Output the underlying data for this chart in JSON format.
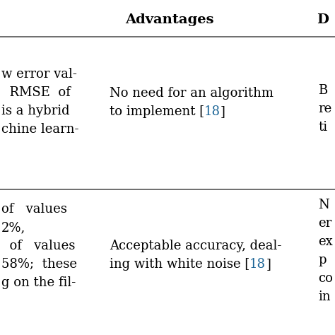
{
  "background_color": "#ffffff",
  "header_text": "Advantages",
  "header_right_text": "D",
  "header_fontsize": 14,
  "row1_left_lines": [
    "w error val-",
    "  RMSE  of",
    "is a hybrid",
    "chine learn-"
  ],
  "row1_mid_line1": "No need for an algorithm",
  "row1_mid_line2_prefix": "to implement [",
  "row1_mid_line2_ref": "18",
  "row1_mid_line2_suffix": "]",
  "row1_right_lines": [
    "B",
    "re",
    "ti"
  ],
  "row2_left_lines": [
    "of   values",
    "2%,",
    "  of   values",
    "58%;  these",
    "g on the fil-"
  ],
  "row2_mid_line1": "Acceptable accuracy, deal-",
  "row2_mid_line2_prefix": "ing with white noise [",
  "row2_mid_line2_ref": "18",
  "row2_mid_line2_suffix": "]",
  "row2_right_lines": [
    "N",
    "er",
    "ex",
    "p",
    "co",
    "in"
  ],
  "text_color": "#000000",
  "link_color": "#1a6496",
  "body_fontsize": 13,
  "line_color": "#555555"
}
